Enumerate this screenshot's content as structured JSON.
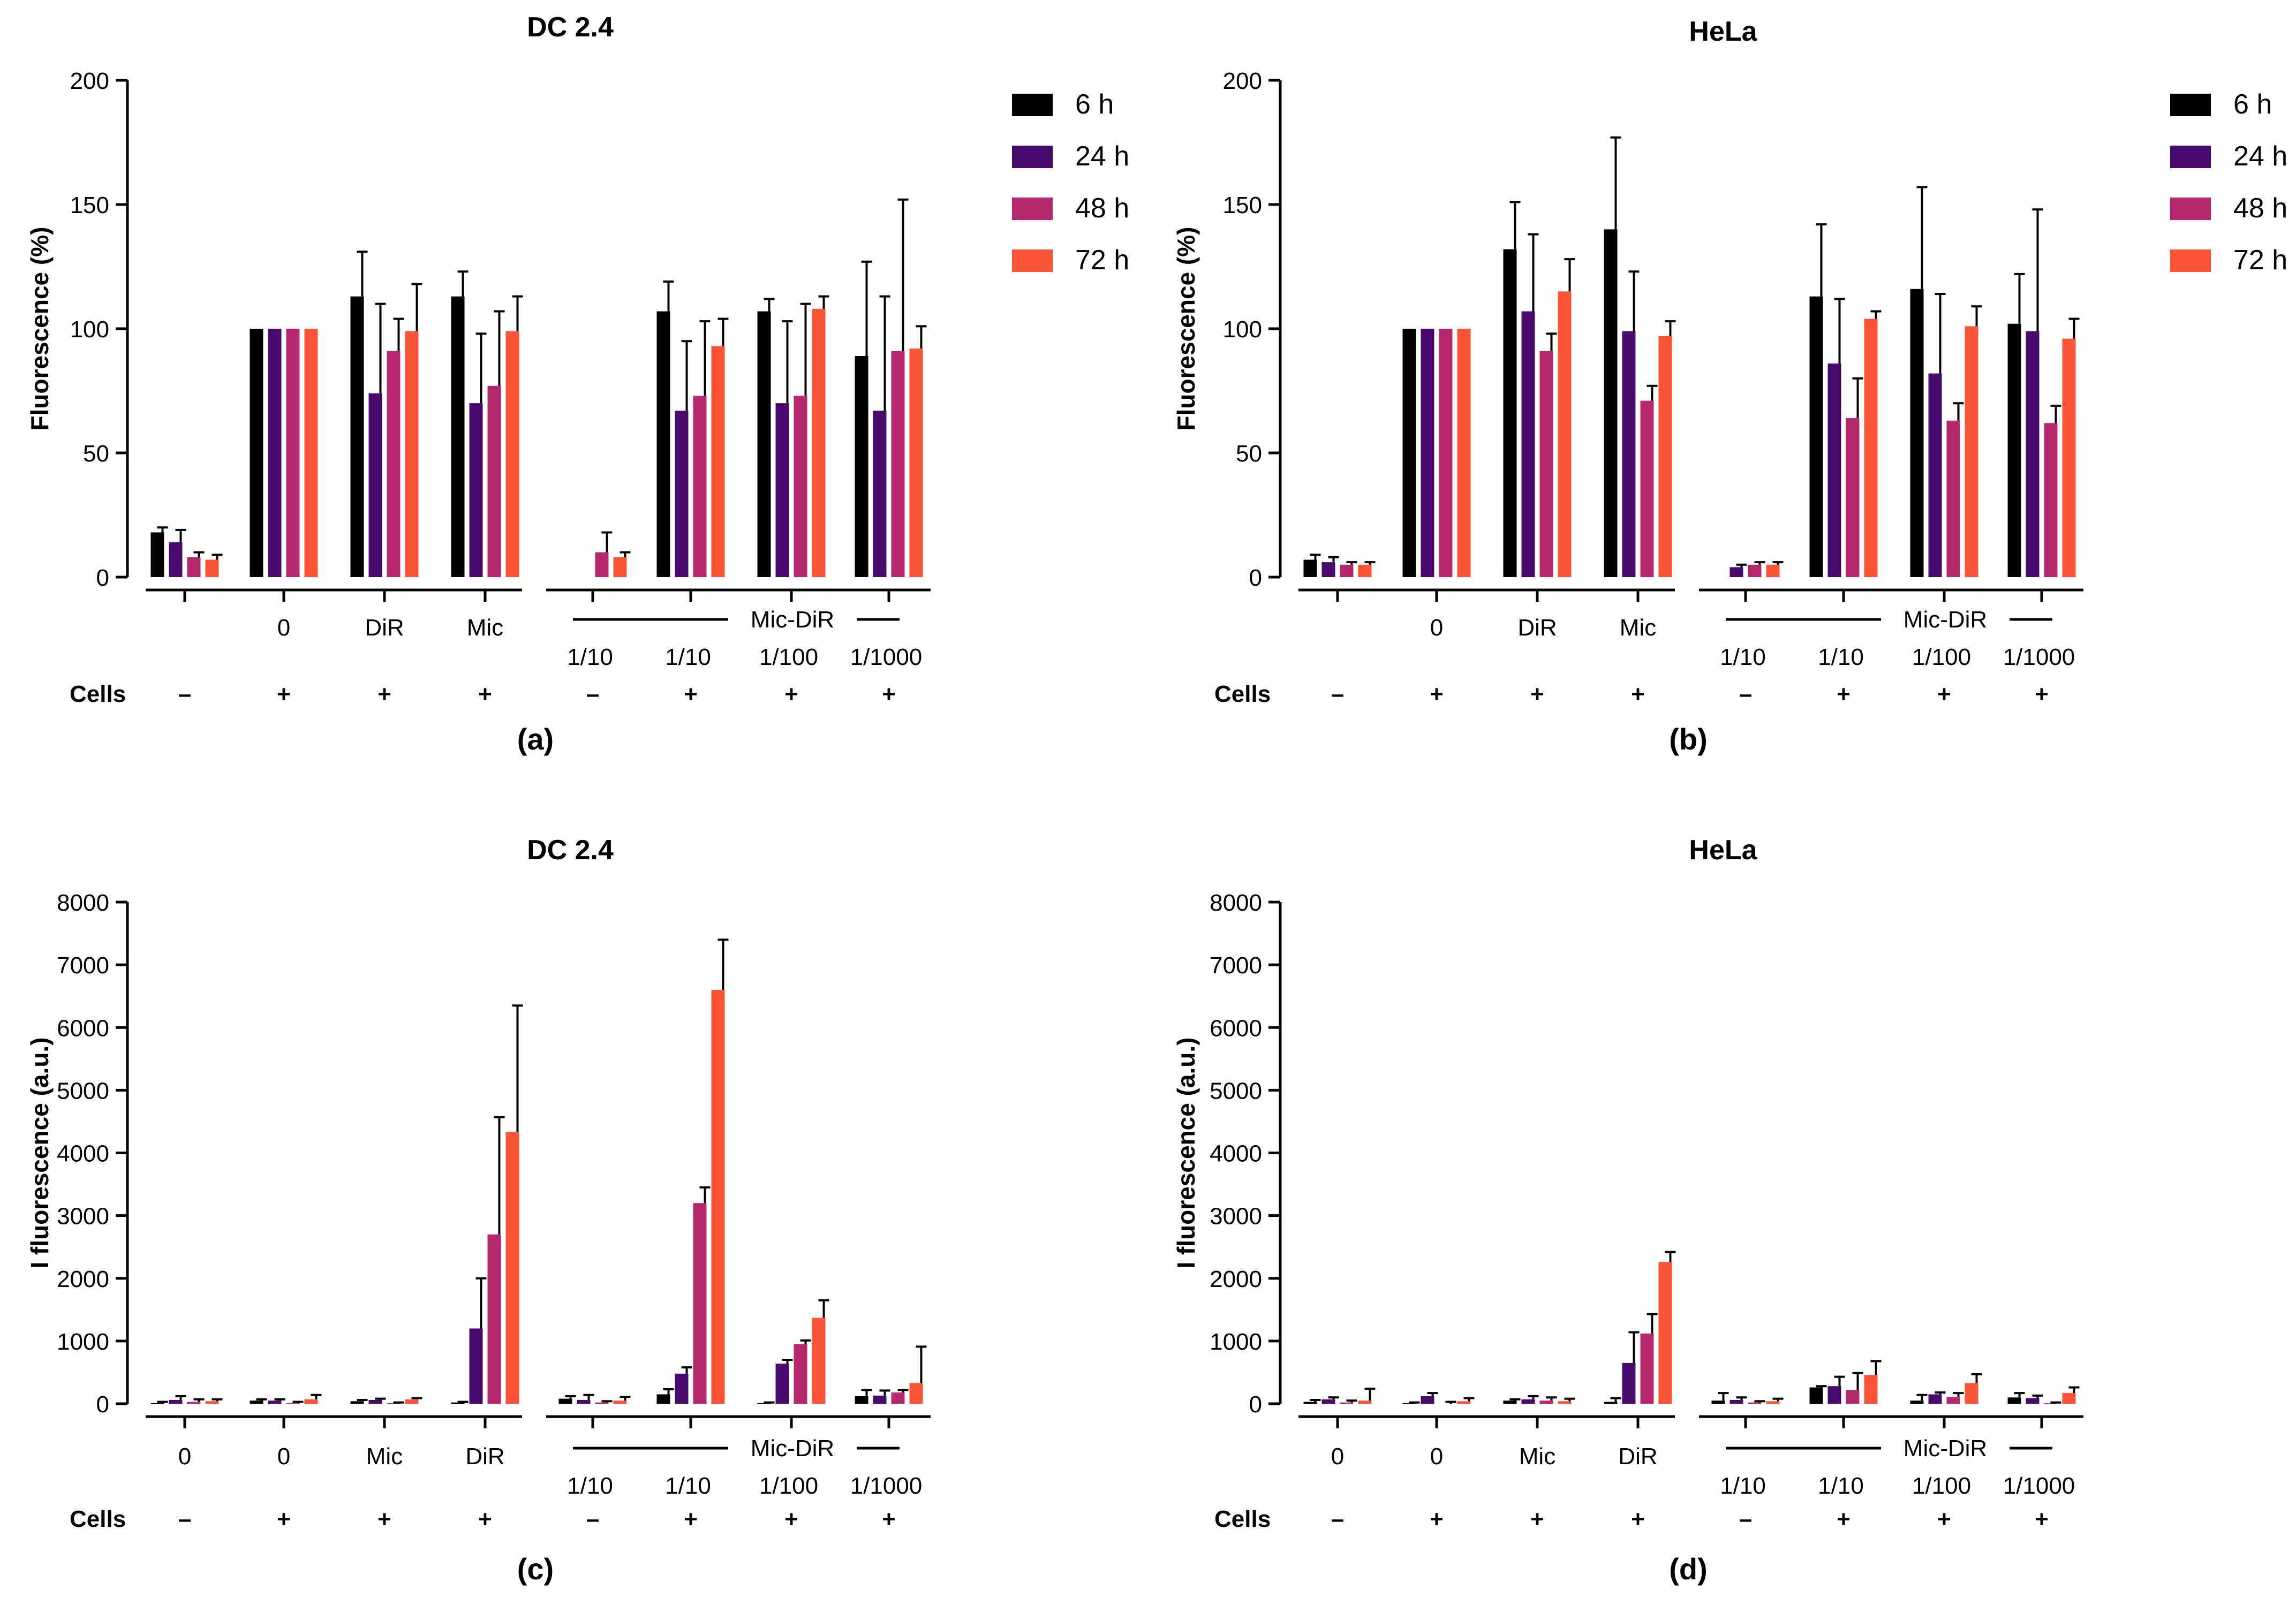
{
  "series_colors": [
    "#000000",
    "#4a0a6b",
    "#b5286e",
    "#fb5539"
  ],
  "chart_data": [
    {
      "type": "bar",
      "panel_label": "(a)",
      "title": "DC 2.4",
      "ylabel": "Fluorescence (%)",
      "xlabel": "",
      "ylim": [
        0,
        200
      ],
      "yticks": [
        "0",
        "50",
        "100",
        "150",
        "200"
      ],
      "legend": [
        "6 h",
        "24 h",
        "48 h",
        "72 h"
      ],
      "categories": [
        "",
        "0",
        "DiR",
        "Mic",
        "1/10",
        "1/10",
        "1/100",
        "1/1000"
      ],
      "cells_label": "Cells",
      "cells": [
        "–",
        "+",
        "+",
        "+",
        "–",
        "+",
        "+",
        "+"
      ],
      "bracket_label": "Mic-DiR",
      "series": [
        {
          "name": "6 h",
          "values": [
            18,
            100,
            113,
            113,
            0,
            107,
            107,
            89
          ],
          "errors": [
            2,
            0,
            18,
            10,
            0,
            12,
            5,
            38
          ]
        },
        {
          "name": "24 h",
          "values": [
            14,
            100,
            74,
            70,
            0,
            67,
            70,
            67
          ],
          "errors": [
            5,
            0,
            36,
            28,
            0,
            28,
            33,
            46
          ]
        },
        {
          "name": "48 h",
          "values": [
            8,
            100,
            91,
            77,
            10,
            73,
            73,
            91
          ],
          "errors": [
            2,
            0,
            13,
            30,
            8,
            30,
            37,
            61
          ]
        },
        {
          "name": "72 h",
          "values": [
            7,
            100,
            99,
            99,
            8,
            93,
            108,
            92
          ],
          "errors": [
            2,
            0,
            19,
            14,
            2,
            11,
            5,
            9
          ]
        }
      ]
    },
    {
      "type": "bar",
      "panel_label": "(b)",
      "title": "HeLa",
      "ylabel": "Fluorescence (%)",
      "xlabel": "",
      "ylim": [
        0,
        200
      ],
      "yticks": [
        "0",
        "50",
        "100",
        "150",
        "200"
      ],
      "legend": [
        "6 h",
        "24 h",
        "48 h",
        "72 h"
      ],
      "categories": [
        "",
        "0",
        "DiR",
        "Mic",
        "1/10",
        "1/10",
        "1/100",
        "1/1000"
      ],
      "cells_label": "Cells",
      "cells": [
        "–",
        "+",
        "+",
        "+",
        "–",
        "+",
        "+",
        "+"
      ],
      "bracket_label": "Mic-DiR",
      "series": [
        {
          "name": "6 h",
          "values": [
            7,
            100,
            132,
            140,
            0,
            113,
            116,
            102
          ],
          "errors": [
            2,
            0,
            19,
            37,
            0,
            29,
            41,
            20
          ]
        },
        {
          "name": "24 h",
          "values": [
            6,
            100,
            107,
            99,
            4,
            86,
            82,
            99
          ],
          "errors": [
            2,
            0,
            31,
            24,
            1,
            26,
            32,
            49
          ]
        },
        {
          "name": "48 h",
          "values": [
            5,
            100,
            91,
            71,
            5,
            64,
            63,
            62
          ],
          "errors": [
            1,
            0,
            7,
            6,
            1,
            16,
            7,
            7
          ]
        },
        {
          "name": "72 h",
          "values": [
            5,
            100,
            115,
            97,
            5,
            104,
            101,
            96
          ],
          "errors": [
            1,
            0,
            13,
            6,
            1,
            3,
            8,
            8
          ]
        }
      ]
    },
    {
      "type": "bar",
      "panel_label": "(c)",
      "title": "DC 2.4",
      "ylabel": "I fluorescence (a.u.)",
      "xlabel": "",
      "ylim": [
        0,
        8000
      ],
      "yticks": [
        "0",
        "1000",
        "2000",
        "3000",
        "4000",
        "5000",
        "6000",
        "7000",
        "8000"
      ],
      "legend": [],
      "categories": [
        "0",
        "0",
        "Mic",
        "DiR",
        "1/10",
        "1/10",
        "1/100",
        "1/1000"
      ],
      "cells_label": "Cells",
      "cells": [
        "–",
        "+",
        "+",
        "+",
        "–",
        "+",
        "+",
        "+"
      ],
      "bracket_label": "Mic-DiR",
      "series": [
        {
          "name": "6 h",
          "values": [
            10,
            50,
            40,
            20,
            80,
            150,
            10,
            120
          ],
          "errors": [
            20,
            20,
            20,
            10,
            40,
            80,
            10,
            100
          ]
        },
        {
          "name": "24 h",
          "values": [
            60,
            50,
            60,
            1200,
            60,
            480,
            640,
            130
          ],
          "errors": [
            60,
            20,
            20,
            800,
            80,
            100,
            60,
            80
          ]
        },
        {
          "name": "48 h",
          "values": [
            30,
            10,
            10,
            2700,
            20,
            3200,
            950,
            180
          ],
          "errors": [
            40,
            20,
            10,
            1870,
            20,
            250,
            60,
            40
          ]
        },
        {
          "name": "72 h",
          "values": [
            40,
            70,
            70,
            4330,
            50,
            6600,
            1370,
            330
          ],
          "errors": [
            30,
            70,
            20,
            2020,
            60,
            800,
            280,
            580
          ]
        }
      ]
    },
    {
      "type": "bar",
      "panel_label": "(d)",
      "title": "HeLa",
      "ylabel": "I fluorescence (a.u.)",
      "xlabel": "",
      "ylim": [
        0,
        8000
      ],
      "yticks": [
        "0",
        "1000",
        "2000",
        "3000",
        "4000",
        "5000",
        "6000",
        "7000",
        "8000"
      ],
      "legend": [],
      "categories": [
        "0",
        "0",
        "Mic",
        "DiR",
        "1/10",
        "1/10",
        "1/100",
        "1/1000"
      ],
      "cells_label": "Cells",
      "cells": [
        "–",
        "+",
        "+",
        "+",
        "–",
        "+",
        "+",
        "+"
      ],
      "bracket_label": "Mic-DiR",
      "series": [
        {
          "name": "6 h",
          "values": [
            30,
            10,
            50,
            30,
            50,
            260,
            50,
            100
          ],
          "errors": [
            30,
            10,
            20,
            60,
            120,
            20,
            90,
            70
          ]
        },
        {
          "name": "24 h",
          "values": [
            70,
            120,
            70,
            650,
            60,
            280,
            150,
            90
          ],
          "errors": [
            30,
            50,
            50,
            490,
            40,
            150,
            30,
            40
          ]
        },
        {
          "name": "48 h",
          "values": [
            20,
            0,
            50,
            1120,
            20,
            220,
            110,
            10
          ],
          "errors": [
            30,
            30,
            50,
            310,
            20,
            270,
            60,
            10
          ]
        },
        {
          "name": "72 h",
          "values": [
            50,
            40,
            40,
            2260,
            40,
            460,
            330,
            170
          ],
          "errors": [
            190,
            50,
            40,
            160,
            40,
            220,
            140,
            90
          ]
        }
      ]
    }
  ]
}
